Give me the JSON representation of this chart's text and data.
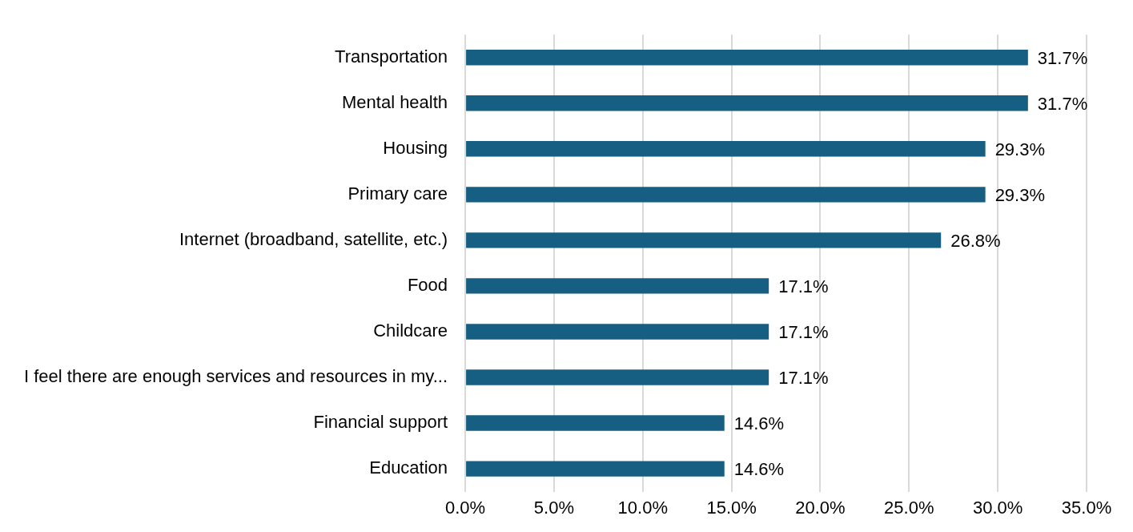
{
  "chart_data": {
    "type": "bar",
    "orientation": "horizontal",
    "categories": [
      "Transportation",
      "Mental health",
      "Housing",
      "Primary care",
      "Internet (broadband, satellite, etc.)",
      "Food",
      "Childcare",
      "I feel there are enough services and resources in my...",
      "Financial support",
      "Education"
    ],
    "values": [
      31.7,
      31.7,
      29.3,
      29.3,
      26.8,
      17.1,
      17.1,
      17.1,
      14.6,
      14.6
    ],
    "value_labels": [
      "31.7%",
      "31.7%",
      "29.3%",
      "29.3%",
      "26.8%",
      "17.1%",
      "17.1%",
      "17.1%",
      "14.6%",
      "14.6%"
    ],
    "color": "#175f82",
    "xlim": [
      0,
      35
    ],
    "xticks": [
      {
        "value": 0,
        "label": "0.0%"
      },
      {
        "value": 5,
        "label": "5.0%"
      },
      {
        "value": 10,
        "label": "10.0%"
      },
      {
        "value": 15,
        "label": "15.0%"
      },
      {
        "value": 20,
        "label": "20.0%"
      },
      {
        "value": 25,
        "label": "25.0%"
      },
      {
        "value": 30,
        "label": "30.0%"
      },
      {
        "value": 35,
        "label": "35.0%"
      }
    ],
    "grid": "x",
    "legend": false
  }
}
